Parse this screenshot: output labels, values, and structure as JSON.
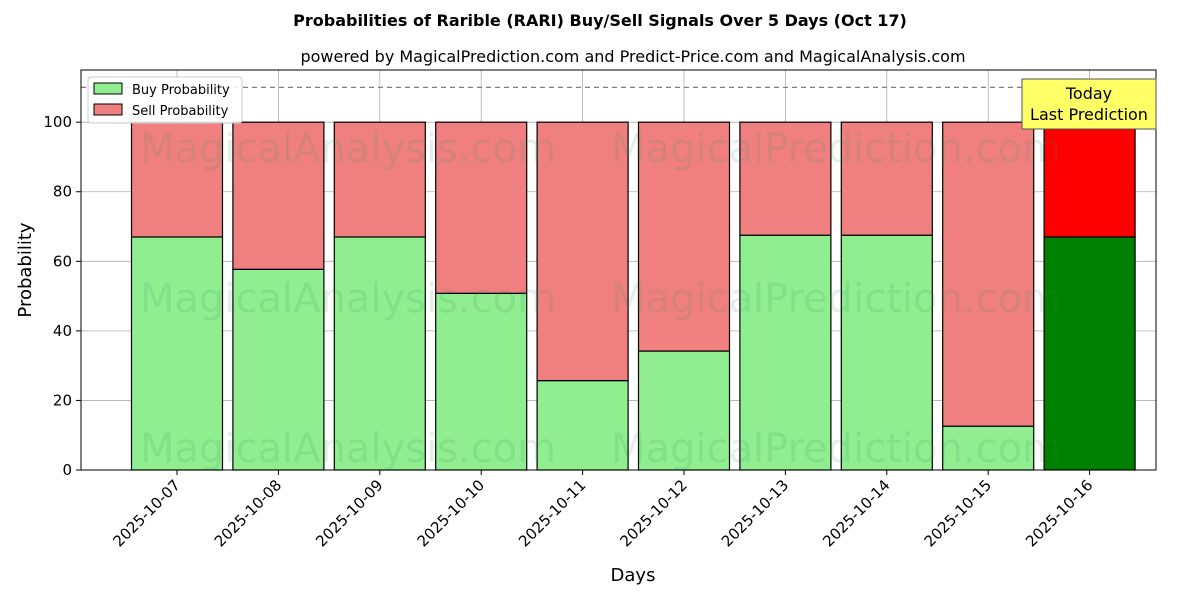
{
  "chart_data": {
    "type": "bar",
    "stacked": true,
    "title": "Probabilities of Rarible (RARI) Buy/Sell Signals Over 5 Days (Oct 17)",
    "subtitle": "powered by MagicalPrediction.com and Predict-Price.com and MagicalAnalysis.com",
    "xlabel": "Days",
    "ylabel": "Probability",
    "ylim": [
      0,
      115
    ],
    "yticks": [
      0,
      20,
      40,
      60,
      80,
      100
    ],
    "grid": true,
    "legend_position": "top-left",
    "categories": [
      "2025-10-07",
      "2025-10-08",
      "2025-10-09",
      "2025-10-10",
      "2025-10-11",
      "2025-10-12",
      "2025-10-13",
      "2025-10-14",
      "2025-10-15",
      "2025-10-16"
    ],
    "series": [
      {
        "name": "Buy Probability",
        "values": [
          67,
          57.7,
          67,
          50.8,
          25.7,
          34.2,
          67.5,
          67.5,
          12.6,
          67
        ],
        "color": "#90ee90",
        "highlight_color": "#008000"
      },
      {
        "name": "Sell Probability",
        "values": [
          33,
          42.3,
          33,
          49.2,
          74.3,
          65.8,
          32.5,
          32.5,
          87.4,
          33
        ],
        "color": "#f08080",
        "highlight_color": "#ff0000"
      }
    ],
    "highlight_index": 9,
    "reference_line": {
      "y": 110,
      "style": "dashed",
      "color": "#808080"
    },
    "annotation": {
      "lines": [
        "Today",
        "Last Prediction"
      ],
      "background": "#ffff66"
    },
    "watermarks": [
      "MagicalAnalysis.com",
      "MagicalPrediction.com",
      "MagicalAnalysis.com",
      "MagicalPrediction.com",
      "MagicalAnalysis.com",
      "MagicalPrediction.com"
    ]
  }
}
